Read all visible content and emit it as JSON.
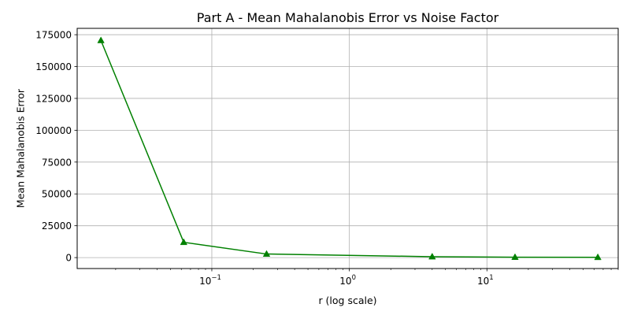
{
  "chart_data": {
    "type": "line",
    "title": "Part A - Mean Mahalanobis Error vs Noise Factor",
    "xlabel": "r (log scale)",
    "ylabel": "Mean Mahalanobis Error",
    "xscale": "log",
    "xlim": [
      0.0105,
      90
    ],
    "ylim": [
      -8600,
      180000
    ],
    "grid": true,
    "x_ticks": [
      {
        "value": 0.1,
        "base": "10",
        "exp": "−1"
      },
      {
        "value": 1,
        "base": "10",
        "exp": "0"
      },
      {
        "value": 10,
        "base": "10",
        "exp": "1"
      }
    ],
    "y_ticks": [
      {
        "value": 0,
        "label": "0"
      },
      {
        "value": 25000,
        "label": "25000"
      },
      {
        "value": 50000,
        "label": "50000"
      },
      {
        "value": 75000,
        "label": "75000"
      },
      {
        "value": 100000,
        "label": "100000"
      },
      {
        "value": 125000,
        "label": "125000"
      },
      {
        "value": 150000,
        "label": "150000"
      },
      {
        "value": 175000,
        "label": "175000"
      }
    ],
    "series": [
      {
        "color": "#008000",
        "marker": "triangle-up",
        "x": [
          0.015625,
          0.0625,
          0.25,
          4,
          16,
          64
        ],
        "y": [
          170500,
          12000,
          2800,
          700,
          300,
          200
        ]
      }
    ]
  }
}
